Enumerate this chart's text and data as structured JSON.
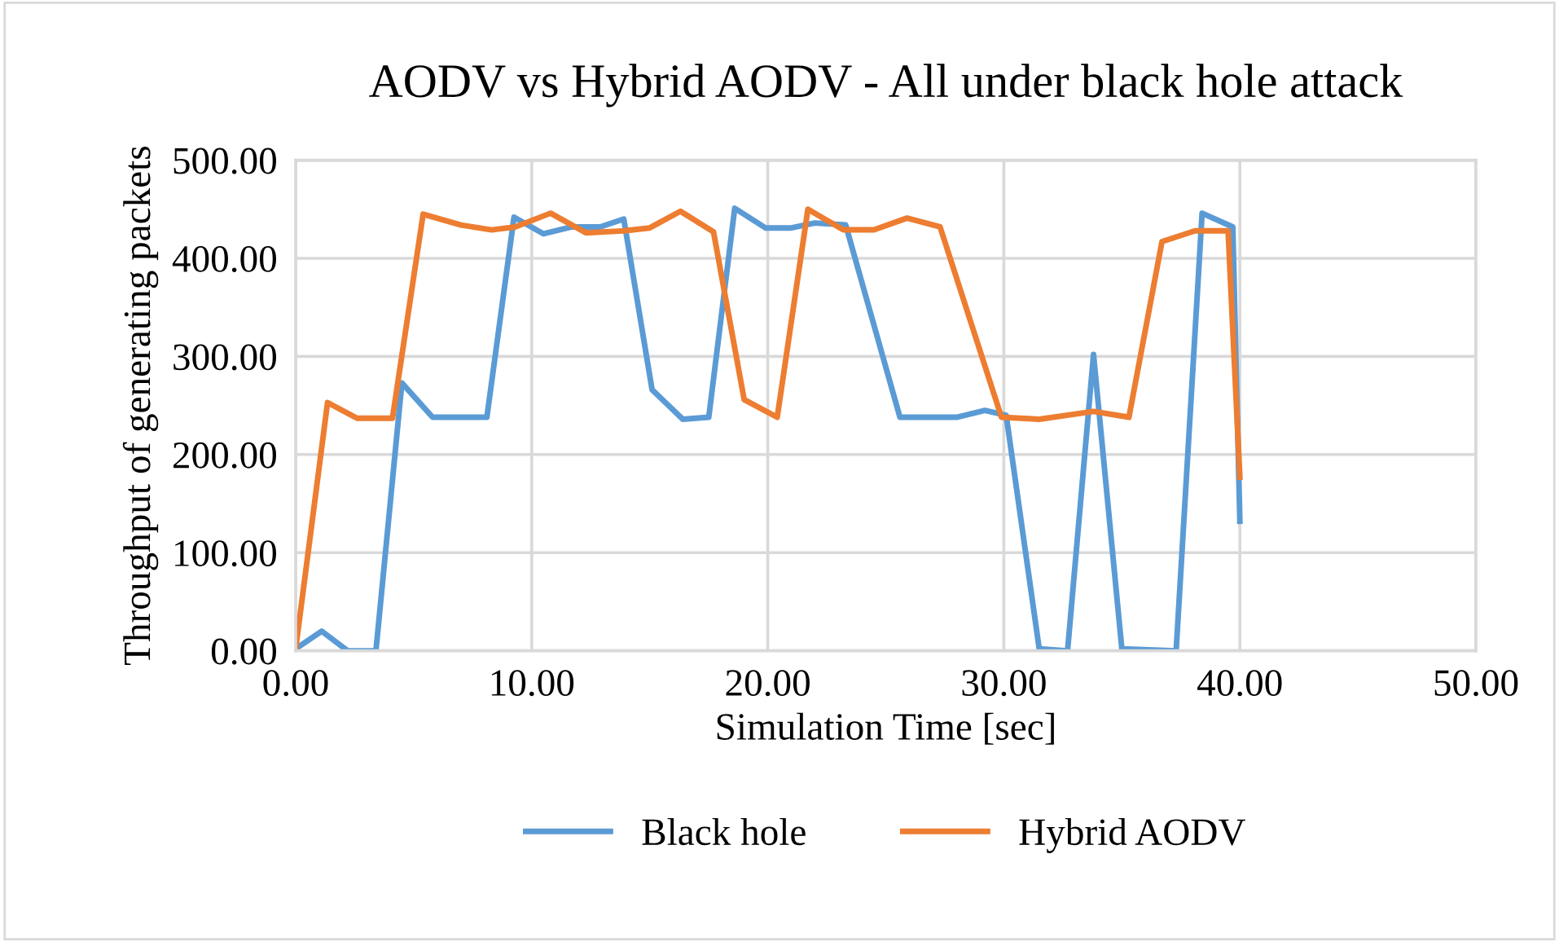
{
  "chart_data": {
    "type": "line",
    "title": "AODV vs Hybrid AODV - All under black hole attack",
    "xlabel": "Simulation Time [sec]",
    "ylabel": "Throughput of generating packets",
    "xlim": [
      0,
      50
    ],
    "ylim": [
      0,
      500
    ],
    "xticks": [
      {
        "value": 0,
        "label": "0.00"
      },
      {
        "value": 10,
        "label": "10.00"
      },
      {
        "value": 20,
        "label": "20.00"
      },
      {
        "value": 30,
        "label": "30.00"
      },
      {
        "value": 40,
        "label": "40.00"
      },
      {
        "value": 50,
        "label": "50.00"
      }
    ],
    "yticks": [
      {
        "value": 0,
        "label": "0.00"
      },
      {
        "value": 100,
        "label": "100.00"
      },
      {
        "value": 200,
        "label": "200.00"
      },
      {
        "value": 300,
        "label": "300.00"
      },
      {
        "value": 400,
        "label": "400.00"
      },
      {
        "value": 500,
        "label": "500.00"
      }
    ],
    "grid": true,
    "legend": "bottom",
    "marker": "none",
    "line_style": "solid",
    "series": [
      {
        "name": "Black hole",
        "color": "#5b9bd5",
        "x": [
          0,
          1.1,
          2.2,
          3.4,
          4.5,
          5.8,
          8.1,
          9.25,
          10.5,
          11.7,
          12.9,
          13.9,
          15.1,
          16.4,
          17.5,
          18.6,
          19.9,
          21.0,
          22.0,
          23.3,
          25.6,
          28.0,
          29.2,
          30.1,
          31.5,
          32.7,
          33.8,
          35.0,
          37.3,
          38.4,
          39.7,
          40.0
        ],
        "values": [
          2,
          20,
          0,
          0,
          273,
          238,
          238,
          442,
          425,
          432,
          432,
          440,
          266,
          236,
          238,
          451,
          431,
          431,
          436,
          434,
          238,
          238,
          245,
          240,
          2,
          0,
          302,
          2,
          0,
          446,
          432,
          132
        ]
      },
      {
        "name": "Hybrid AODV",
        "color": "#ed7d31",
        "x": [
          0,
          1.35,
          2.6,
          4.1,
          5.4,
          7.0,
          8.3,
          9.3,
          10.8,
          12.3,
          13.9,
          15.0,
          16.3,
          17.7,
          19.0,
          20.4,
          21.7,
          23.2,
          24.5,
          25.9,
          27.3,
          29.9,
          31.5,
          33.8,
          35.3,
          36.7,
          38.1,
          39.5,
          40.0
        ],
        "values": [
          2,
          253,
          237,
          237,
          445,
          434,
          429,
          432,
          446,
          426,
          428,
          431,
          448,
          427,
          256,
          238,
          450,
          429,
          429,
          441,
          432,
          238,
          236,
          244,
          238,
          417,
          428,
          428,
          177
        ]
      }
    ]
  }
}
